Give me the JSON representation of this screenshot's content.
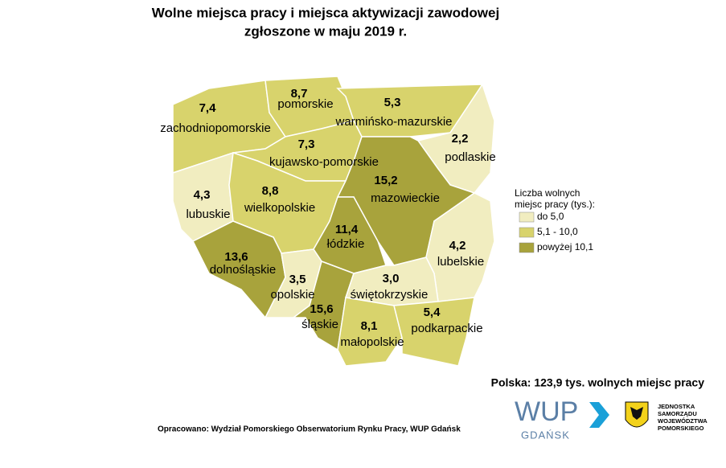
{
  "chart_data": {
    "type": "choropleth",
    "title": [
      "Wolne miejsca pracy i miejsca aktywizacji zawodowej",
      "zgłoszone w maju 2019 r."
    ],
    "categories": [
      "zachodniopomorskie",
      "pomorskie",
      "warmińsko-mazurskie",
      "podlaskie",
      "kujawsko-pomorskie",
      "lubuskie",
      "wielkopolskie",
      "mazowieckie",
      "łódzkie",
      "lubelskie",
      "dolnośląskie",
      "opolskie",
      "śląskie",
      "świętokrzyskie",
      "małopolskie",
      "podkarpackie"
    ],
    "values": [
      7.4,
      8.7,
      5.3,
      2.2,
      7.3,
      4.3,
      8.8,
      15.2,
      11.4,
      4.2,
      13.6,
      3.5,
      15.6,
      3.0,
      8.1,
      5.4
    ],
    "value_labels": [
      "7,4",
      "8,7",
      "5,3",
      "2,2",
      "7,3",
      "4,3",
      "8,8",
      "15,2",
      "11,4",
      "4,2",
      "13,6",
      "3,5",
      "15,6",
      "3,0",
      "8,1",
      "5,4"
    ],
    "colors": [
      "#d8d36c",
      "#d8d36c",
      "#d8d36c",
      "#f1edc0",
      "#d8d36c",
      "#f1edc0",
      "#d8d36c",
      "#a8a33c",
      "#a8a33c",
      "#f1edc0",
      "#a8a33c",
      "#f1edc0",
      "#a8a33c",
      "#f1edc0",
      "#d8d36c",
      "#d8d36c"
    ],
    "legend_title": [
      "Liczba wolnych",
      "miejsc pracy (tys.):"
    ],
    "legend": [
      {
        "label": "do 5,0",
        "color": "#f1edc0"
      },
      {
        "label": "5,1 - 10,0",
        "color": "#d8d36c"
      },
      {
        "label": "powyżej 10,1",
        "color": "#a8a33c"
      }
    ],
    "summary": "Polska: 123,9 tys. wolnych miejsc pracy",
    "source": "Opracowano: Wydział Pomorskiego Obserwatorium Rynku Pracy, WUP Gdańsk",
    "logo_wup": [
      "WUP",
      "GDAŃSK"
    ],
    "logo_region": [
      "JEDNOSTKA",
      "SAMORZĄDU",
      "WOJEWÓDZTWA",
      "POMORSKIEGO"
    ]
  }
}
